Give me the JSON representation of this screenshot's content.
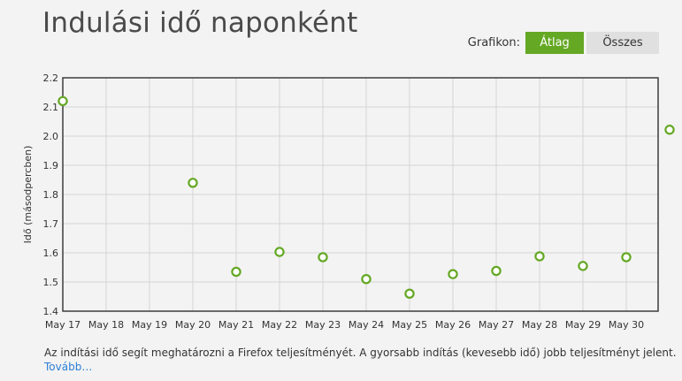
{
  "header": {
    "title": "Indulási idő naponként"
  },
  "toggle": {
    "label": "Grafikon:",
    "options": [
      "Átlag",
      "Összes"
    ],
    "selected": "Átlag"
  },
  "colors": {
    "accent": "#64a824",
    "link": "#2a7fd4",
    "grid": "#d4d4d4"
  },
  "chart_data": {
    "type": "scatter",
    "ylabel": "Idő (másodpercben)",
    "ylim": [
      1.4,
      2.2
    ],
    "yticks": [
      "1.4",
      "1.5",
      "1.6",
      "1.7",
      "1.8",
      "1.9",
      "2.0",
      "2.1",
      "2.2"
    ],
    "categories": [
      "May 17",
      "May 18",
      "May 19",
      "May 20",
      "May 21",
      "May 22",
      "May 23",
      "May 24",
      "May 25",
      "May 26",
      "May 27",
      "May 28",
      "May 29",
      "May 30"
    ],
    "points": [
      {
        "x": "May 17",
        "y": 2.12
      },
      {
        "x": "May 20",
        "y": 1.84
      },
      {
        "x": "May 21",
        "y": 1.535
      },
      {
        "x": "May 22",
        "y": 1.603
      },
      {
        "x": "May 23",
        "y": 1.585
      },
      {
        "x": "May 24",
        "y": 1.51
      },
      {
        "x": "May 25",
        "y": 1.46
      },
      {
        "x": "May 26",
        "y": 1.527
      },
      {
        "x": "May 27",
        "y": 1.538
      },
      {
        "x": "May 28",
        "y": 1.588
      },
      {
        "x": "May 29",
        "y": 1.555
      },
      {
        "x": "May 30",
        "y": 1.585
      },
      {
        "x": "May 31",
        "y": 2.022
      }
    ],
    "grid": true
  },
  "footer": {
    "text": "Az indítási idő segít meghatározni a Firefox teljesítményét. A gyorsabb indítás (kevesebb idő) jobb teljesítményt jelent.",
    "link": "Tovább…"
  }
}
